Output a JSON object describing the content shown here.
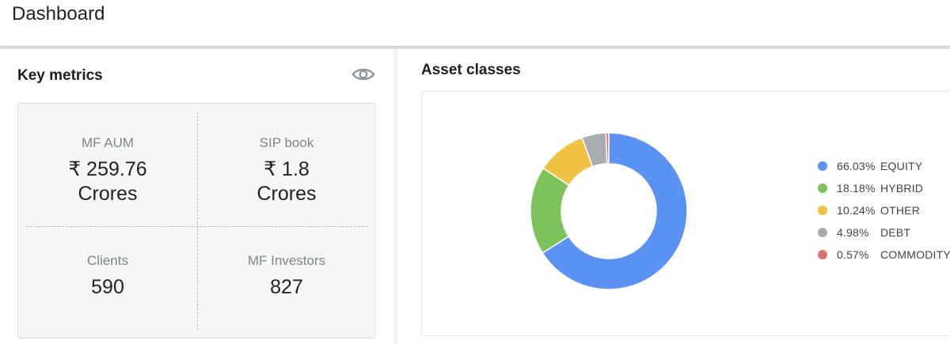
{
  "header": {
    "title": "Dashboard"
  },
  "key_metrics": {
    "title": "Key metrics",
    "toggle_icon": "eye-icon",
    "items": [
      {
        "label": "MF AUM",
        "value_line1": "₹ 259.76",
        "value_line2": "Crores"
      },
      {
        "label": "SIP book",
        "value_line1": "₹ 1.8",
        "value_line2": "Crores"
      },
      {
        "label": "Clients",
        "value_line1": "590",
        "value_line2": ""
      },
      {
        "label": "MF Investors",
        "value_line1": "827",
        "value_line2": ""
      }
    ]
  },
  "asset_classes": {
    "title": "Asset classes",
    "chart_data": {
      "type": "pie",
      "donut": true,
      "legend_position": "right",
      "unit": "%",
      "slices": [
        {
          "label": "EQUITY",
          "value": 66.03,
          "display": "66.03%",
          "color": "#5b93f5"
        },
        {
          "label": "HYBRID",
          "value": 18.18,
          "display": "18.18%",
          "color": "#7dc35b"
        },
        {
          "label": "OTHER",
          "value": 10.24,
          "display": "10.24%",
          "color": "#f0c243"
        },
        {
          "label": "DEBT",
          "value": 4.98,
          "display": "4.98%",
          "color": "#a8adb2"
        },
        {
          "label": "COMMODITY",
          "value": 0.57,
          "display": "0.57%",
          "color": "#e07070"
        }
      ]
    }
  }
}
